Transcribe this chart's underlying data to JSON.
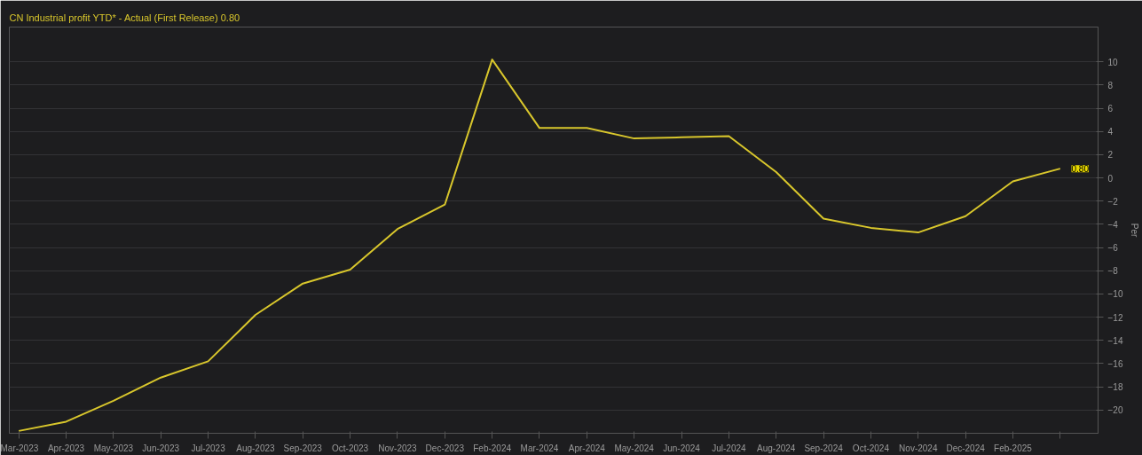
{
  "chart_data": {
    "type": "line",
    "title": "CN Industrial profit YTD* - Actual (First Release) 0.80",
    "ylabel": "Per",
    "categories": [
      "Mar-2023",
      "Apr-2023",
      "May-2023",
      "Jun-2023",
      "Jul-2023",
      "Aug-2023",
      "Sep-2023",
      "Oct-2023",
      "Nov-2023",
      "Dec-2023",
      "Feb-2024",
      "Mar-2024",
      "Apr-2024",
      "May-2024",
      "Jun-2024",
      "Jul-2024",
      "Aug-2024",
      "Sep-2024",
      "Oct-2024",
      "Nov-2024",
      "Dec-2024",
      "Feb-2025",
      null
    ],
    "series": [
      {
        "color": "#d8c62c",
        "values": [
          -21.8,
          -21.0,
          -19.2,
          -17.2,
          -15.8,
          -11.8,
          -9.1,
          -7.9,
          -4.4,
          -2.3,
          10.2,
          4.3,
          4.3,
          3.4,
          3.5,
          3.6,
          0.5,
          -3.5,
          -4.3,
          -4.7,
          -3.3,
          -0.3,
          0.8
        ]
      }
    ],
    "ylim": [
      -22,
      13
    ],
    "yticks": [
      -20,
      -18,
      -16,
      -14,
      -12,
      -10,
      -8,
      -6,
      -4,
      -2,
      0,
      2,
      4,
      6,
      8,
      10
    ],
    "grid": "y",
    "marker": "none",
    "line_style": "solid",
    "annotations": [
      {
        "text": "0.80",
        "y": 0.8
      }
    ]
  }
}
